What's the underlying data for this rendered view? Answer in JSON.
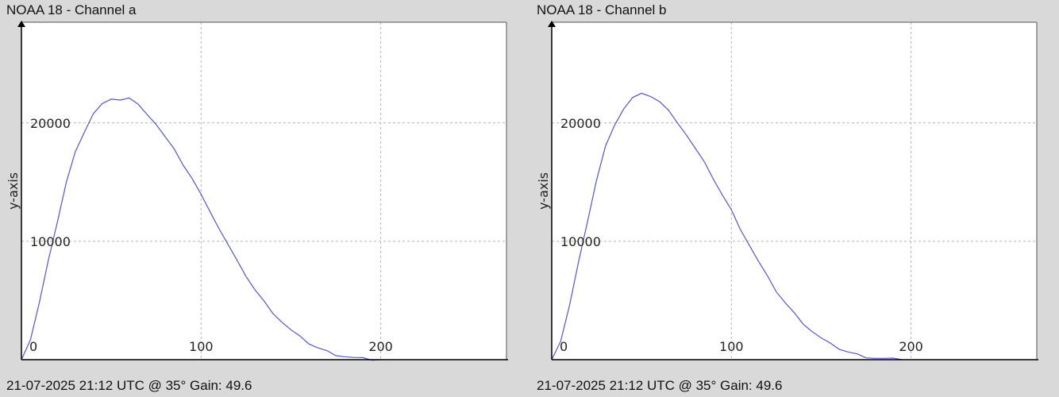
{
  "chart_data": [
    {
      "type": "line",
      "title": "NOAA 18 - Channel a",
      "footer": "21-07-2025 21:12 UTC @ 35° Gain: 49.6",
      "ylabel": "y-axis",
      "xlabel": "",
      "xlim": [
        0,
        270
      ],
      "ylim": [
        0,
        28500
      ],
      "x_ticks": [
        0,
        100,
        200
      ],
      "y_ticks": [
        10000,
        20000
      ],
      "grid": true,
      "color": "#5555cc",
      "series": [
        {
          "x": [
            0,
            5,
            10,
            15,
            20,
            25,
            30,
            35,
            40,
            45,
            50,
            55,
            60,
            65,
            70,
            75,
            80,
            85,
            90,
            95,
            100,
            105,
            110,
            115,
            120,
            125,
            130,
            135,
            140,
            145,
            150,
            155,
            160,
            165,
            170,
            175,
            180,
            185,
            190,
            195,
            200
          ],
          "values": [
            0,
            1700,
            4800,
            8300,
            11700,
            15000,
            17500,
            19300,
            20800,
            21600,
            21900,
            22000,
            22100,
            21500,
            20800,
            19900,
            18800,
            17700,
            16500,
            15300,
            13900,
            12600,
            11100,
            9700,
            8300,
            7100,
            5900,
            4900,
            4000,
            3200,
            2500,
            1900,
            1400,
            1000,
            700,
            450,
            280,
            150,
            70,
            30,
            0
          ]
        }
      ]
    },
    {
      "type": "line",
      "title": "NOAA 18 - Channel b",
      "footer": "21-07-2025 21:12 UTC @ 35° Gain: 49.6",
      "ylabel": "y-axis",
      "xlabel": "",
      "xlim": [
        0,
        270
      ],
      "ylim": [
        0,
        28500
      ],
      "x_ticks": [
        0,
        100,
        200
      ],
      "y_ticks": [
        10000,
        20000
      ],
      "grid": true,
      "color": "#5555cc",
      "series": [
        {
          "x": [
            0,
            5,
            10,
            15,
            20,
            25,
            30,
            35,
            40,
            45,
            50,
            55,
            60,
            65,
            70,
            75,
            80,
            85,
            90,
            95,
            100,
            105,
            110,
            115,
            120,
            125,
            130,
            135,
            140,
            145,
            150,
            155,
            160,
            165,
            170,
            175,
            180,
            185,
            190,
            195
          ],
          "values": [
            0,
            1600,
            4600,
            8200,
            11800,
            15200,
            18000,
            19900,
            21200,
            22100,
            22400,
            22300,
            21800,
            21000,
            20100,
            19000,
            17800,
            16600,
            15300,
            13900,
            12600,
            11100,
            9700,
            8300,
            7000,
            5800,
            4800,
            3900,
            3100,
            2400,
            1800,
            1300,
            950,
            650,
            420,
            260,
            150,
            80,
            30,
            0
          ]
        }
      ]
    }
  ]
}
